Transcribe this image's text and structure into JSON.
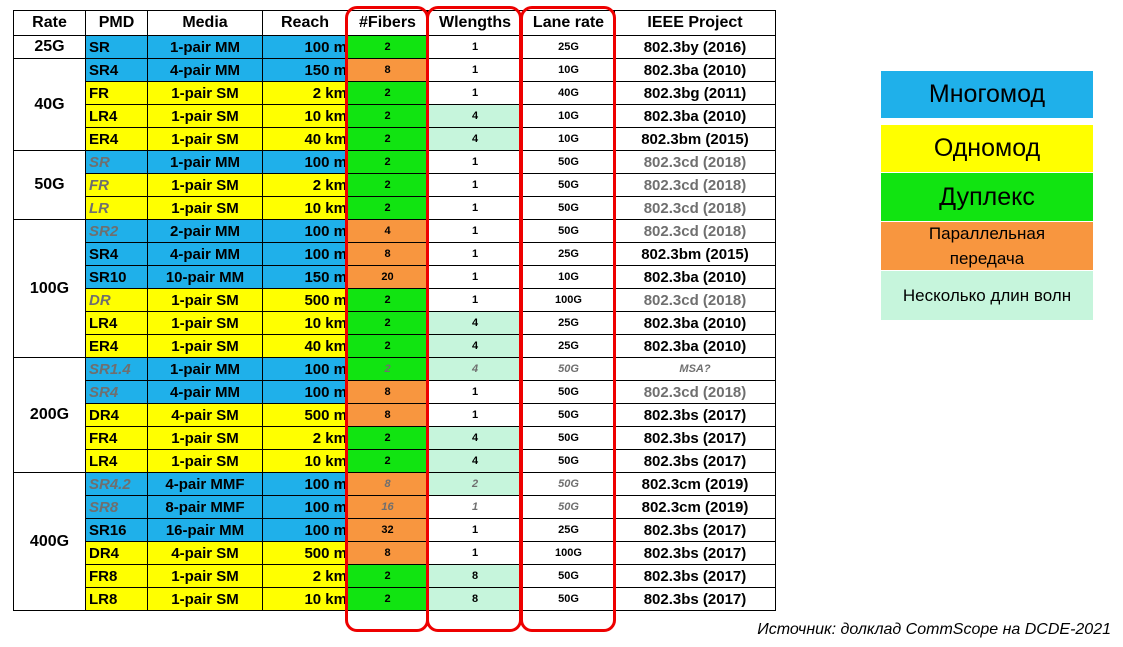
{
  "table": {
    "header": [
      "Rate",
      "PMD",
      "Media",
      "Reach",
      "#Fibers",
      "Wlengths",
      "Lane rate",
      "IEEE Project"
    ],
    "groups": [
      {
        "rate": "25G",
        "rows": [
          [
            "SR",
            "1-pair MM",
            "100 m",
            2,
            1,
            "25G",
            "802.3by (2016)"
          ]
        ]
      },
      {
        "rate": "40G",
        "rows": [
          [
            "SR4",
            "4-pair MM",
            "150 m",
            8,
            1,
            "10G",
            "802.3ba (2010)"
          ],
          [
            "FR",
            "1-pair SM",
            "2 km",
            2,
            1,
            "40G",
            "802.3bg (2011)"
          ],
          [
            "LR4",
            "1-pair SM",
            "10 km",
            2,
            4,
            "10G",
            "802.3ba (2010)"
          ],
          [
            "ER4",
            "1-pair SM",
            "40 km",
            2,
            4,
            "10G",
            "802.3bm (2015)"
          ]
        ]
      },
      {
        "rate": "50G",
        "rows": [
          [
            "SR",
            "1-pair MM",
            "100 m",
            2,
            1,
            "50G",
            "802.3cd (2018)"
          ],
          [
            "FR",
            "1-pair SM",
            "2 km",
            2,
            1,
            "50G",
            "802.3cd (2018)"
          ],
          [
            "LR",
            "1-pair SM",
            "10 km",
            2,
            1,
            "50G",
            "802.3cd (2018)"
          ]
        ]
      },
      {
        "rate": "100G",
        "rows": [
          [
            "SR2",
            "2-pair MM",
            "100 m",
            4,
            1,
            "50G",
            "802.3cd (2018)"
          ],
          [
            "SR4",
            "4-pair MM",
            "100 m",
            8,
            1,
            "25G",
            "802.3bm (2015)"
          ],
          [
            "SR10",
            "10-pair MM",
            "150 m",
            20,
            1,
            "10G",
            "802.3ba (2010)"
          ],
          [
            "DR",
            "1-pair SM",
            "500 m",
            2,
            1,
            "100G",
            "802.3cd (2018)"
          ],
          [
            "LR4",
            "1-pair SM",
            "10 km",
            2,
            4,
            "25G",
            "802.3ba (2010)"
          ],
          [
            "ER4",
            "1-pair SM",
            "40 km",
            2,
            4,
            "25G",
            "802.3ba (2010)"
          ]
        ]
      },
      {
        "rate": "200G",
        "rows": [
          [
            "SR1.4",
            "1-pair MM",
            "100 m",
            2,
            4,
            "50G",
            "MSA?"
          ],
          [
            "SR4",
            "4-pair MM",
            "100 m",
            8,
            1,
            "50G",
            "802.3cd (2018)"
          ],
          [
            "DR4",
            "4-pair SM",
            "500 m",
            8,
            1,
            "50G",
            "802.3bs (2017)"
          ],
          [
            "FR4",
            "1-pair SM",
            "2 km",
            2,
            4,
            "50G",
            "802.3bs (2017)"
          ],
          [
            "LR4",
            "1-pair SM",
            "10 km",
            2,
            4,
            "50G",
            "802.3bs (2017)"
          ]
        ]
      },
      {
        "rate": "400G",
        "rows": [
          [
            "SR4.2",
            "4-pair MMF",
            "100 m",
            8,
            2,
            "50G",
            "802.3cm (2019)"
          ],
          [
            "SR8",
            "8-pair MMF",
            "100 m",
            16,
            1,
            "50G",
            "802.3cm (2019)"
          ],
          [
            "SR16",
            "16-pair MM",
            "100 m",
            32,
            1,
            "25G",
            "802.3bs (2017)"
          ],
          [
            "DR4",
            "4-pair SM",
            "500 m",
            8,
            1,
            "100G",
            "802.3bs (2017)"
          ],
          [
            "FR8",
            "1-pair SM",
            "2 km",
            2,
            8,
            "50G",
            "802.3bs (2017)"
          ],
          [
            "LR8",
            "1-pair SM",
            "10 km",
            2,
            8,
            "50G",
            "802.3bs (2017)"
          ]
        ]
      }
    ]
  },
  "legend": [
    "Многомод",
    "Одномод",
    "Дуплекс",
    "Параллельная передача",
    "Несколько длин волн"
  ],
  "source": "Источник: долклад CommScope на DCDE-2021"
}
